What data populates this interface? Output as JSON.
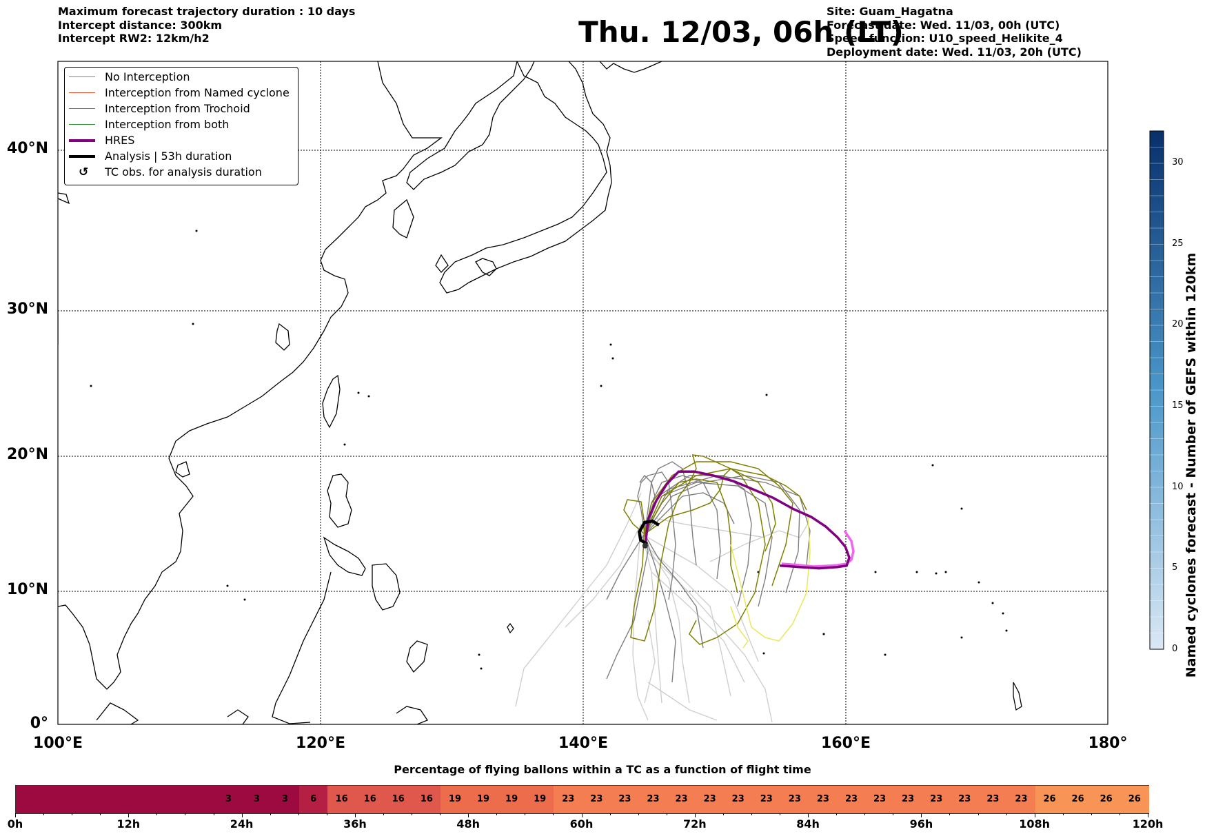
{
  "header": {
    "left_lines": [
      "Maximum forecast trajectory duration : 10 days",
      "Intercept distance: 300km",
      "Intercept RW2: 12km/h2"
    ],
    "title": "Thu. 12/03, 06h (LT)",
    "right_lines": [
      "Site: Guam_Hagatna",
      "Forecast date: Wed. 11/03, 00h (UTC)",
      "Speed function: U10_speed_Helikite_4",
      "Deployment date: Wed. 11/03, 20h (UTC)"
    ]
  },
  "map": {
    "lat_labels": [
      "40°N",
      "30°N",
      "20°N",
      "10°N",
      "0°"
    ],
    "lon_labels": [
      "100°E",
      "120°E",
      "140°E",
      "160°E",
      "180°"
    ]
  },
  "legend": {
    "items": [
      {
        "label": "No Interception",
        "color": "#7f7f7f",
        "style": "thin"
      },
      {
        "label": "Interception from Named cyclone",
        "color": "#e8502a",
        "style": "thin"
      },
      {
        "label": "Interception from Trochoid",
        "color": "#7f7f00",
        "style": "thin"
      },
      {
        "label": "Interception from both",
        "color": "#2e8b2e",
        "style": "thin"
      },
      {
        "label": "HRES",
        "color": "#800080",
        "style": "thick"
      },
      {
        "label": "Analysis | 53h duration",
        "color": "#000000",
        "style": "thick"
      },
      {
        "label": "TC obs. for analysis duration",
        "color": "#000000",
        "style": "symbol"
      }
    ]
  },
  "colorbar": {
    "label": "Named cyclones forecast - Number of GEFS within 120km",
    "ticks": [
      "30",
      "25",
      "20",
      "15",
      "10",
      "5",
      "0"
    ],
    "color_low": "#dbe8f5",
    "color_high": "#08306b"
  },
  "timebar": {
    "title": "Percentage of flying ballons within a TC as a function of flight time",
    "values": [
      0,
      0,
      0,
      0,
      0,
      0,
      0,
      3,
      3,
      3,
      6,
      16,
      16,
      16,
      16,
      19,
      19,
      19,
      19,
      23,
      23,
      23,
      23,
      23,
      23,
      23,
      23,
      23,
      23,
      23,
      23,
      23,
      23,
      23,
      23,
      23,
      26,
      26,
      26,
      26
    ],
    "time_labels": [
      "0h",
      "12h",
      "24h",
      "36h",
      "48h",
      "60h",
      "72h",
      "84h",
      "96h",
      "108h",
      "120h"
    ]
  },
  "chart_data": {
    "type": "trajectory-map",
    "extent": {
      "lon": [
        100,
        180
      ],
      "lat": [
        0,
        45
      ]
    },
    "gridlines": true,
    "site": {
      "name": "Guam_Hagatna",
      "lon": 144.75,
      "lat": 13.48
    },
    "hres_track": [
      [
        144.75,
        13.5
      ],
      [
        145,
        15.5
      ],
      [
        145.6,
        16.8
      ],
      [
        146.4,
        18
      ],
      [
        147.3,
        18.9
      ],
      [
        148.5,
        18.9
      ],
      [
        150,
        18.6
      ],
      [
        151.5,
        18.2
      ],
      [
        153,
        17.6
      ],
      [
        154.5,
        17
      ],
      [
        156,
        16.2
      ],
      [
        157.4,
        15.6
      ],
      [
        158.5,
        14.9
      ],
      [
        159.4,
        14.1
      ],
      [
        160,
        13.4
      ],
      [
        160.3,
        12.6
      ],
      [
        160.1,
        12
      ],
      [
        159.4,
        11.9
      ],
      [
        158,
        11.8
      ],
      [
        156.5,
        11.9
      ],
      [
        155,
        12
      ]
    ],
    "analysis_track": [
      [
        144.9,
        13.6
      ],
      [
        144.4,
        13.9
      ],
      [
        144.3,
        14.5
      ],
      [
        144.7,
        15.2
      ],
      [
        145.3,
        15.3
      ],
      [
        145.8,
        15
      ]
    ]
  }
}
